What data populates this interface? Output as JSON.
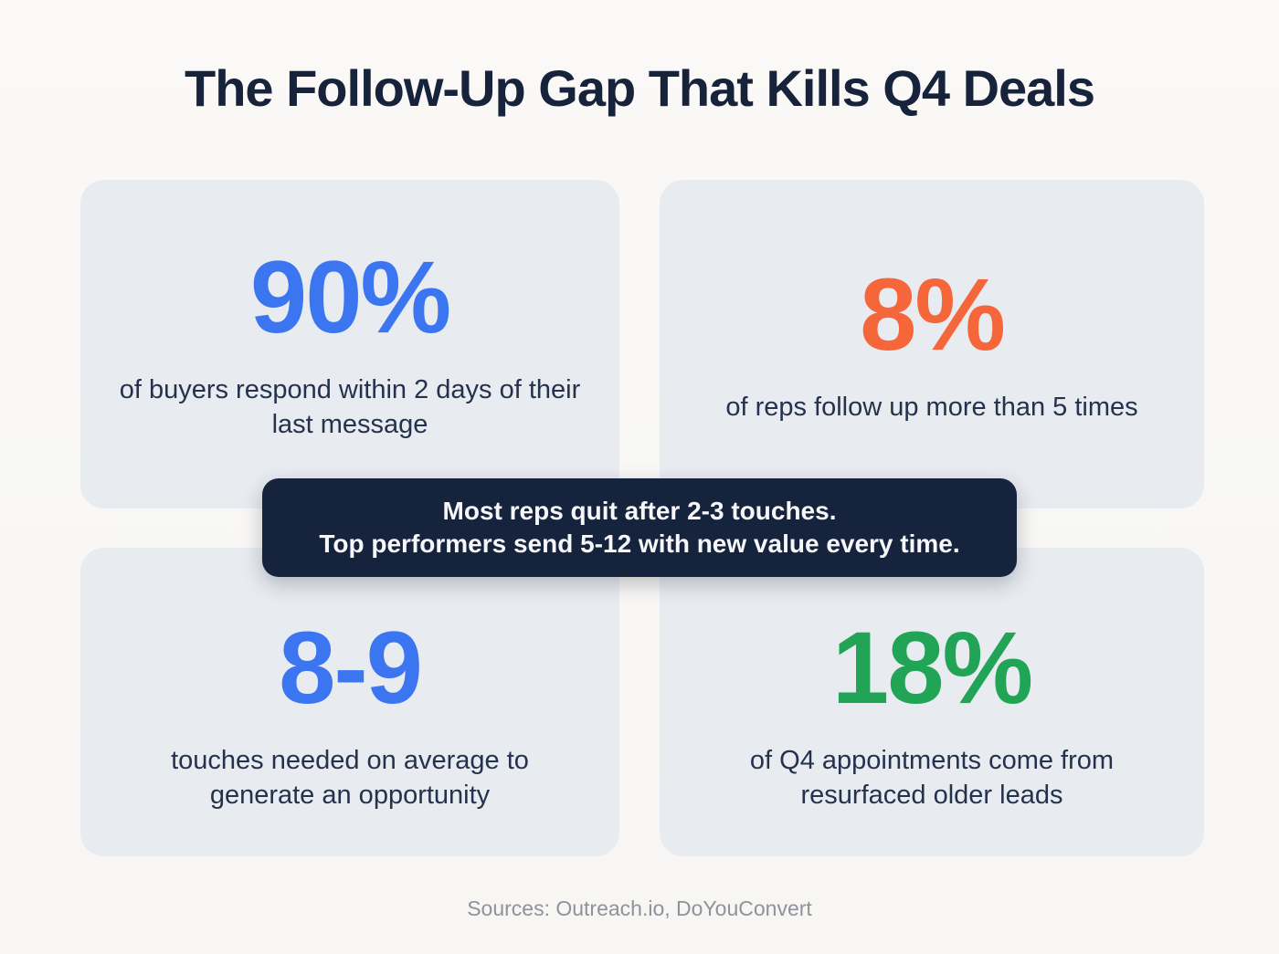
{
  "title": "The Follow-Up Gap That Kills Q4 Deals",
  "cards": [
    {
      "value": "90%",
      "color": "#3b76f0",
      "description": "of buyers respond within 2 days of their last message"
    },
    {
      "value": "8%",
      "color": "#f5673a",
      "description": "of reps follow up more than 5 times"
    },
    {
      "value": "8-9",
      "color": "#3b76f0",
      "description": "touches needed on average to generate an opportunity"
    },
    {
      "value": "18%",
      "color": "#21a455",
      "description": "of Q4 appointments come from resurfaced older leads"
    }
  ],
  "callout": {
    "line1": "Most reps quit after 2-3 touches.",
    "line2": "Top performers send 5-12 with new value every time."
  },
  "footer": {
    "sources": "Sources: Outreach.io, DoYouConvert"
  },
  "colors": {
    "background": "#faf9f7",
    "card_background": "#e8ecf1",
    "title_text": "#17223b",
    "body_text": "#25324e",
    "callout_background": "#16233c",
    "callout_text": "#f5f7fa",
    "accent_blue": "#3b76f0",
    "accent_orange": "#f5673a",
    "accent_green": "#21a455",
    "sources_text": "#8d929c"
  },
  "chart_data": {
    "type": "table",
    "title": "The Follow-Up Gap That Kills Q4 Deals",
    "stats": [
      {
        "value": "90%",
        "label": "of buyers respond within 2 days of their last message"
      },
      {
        "value": "8%",
        "label": "of reps follow up more than 5 times"
      },
      {
        "value": "8-9",
        "label": "touches needed on average to generate an opportunity"
      },
      {
        "value": "18%",
        "label": "of Q4 appointments come from resurfaced older leads"
      }
    ],
    "annotation": "Most reps quit after 2-3 touches. Top performers send 5-12 with new value every time.",
    "sources": "Sources: Outreach.io, DoYouConvert",
    "legend_position": "none",
    "grid": false
  }
}
